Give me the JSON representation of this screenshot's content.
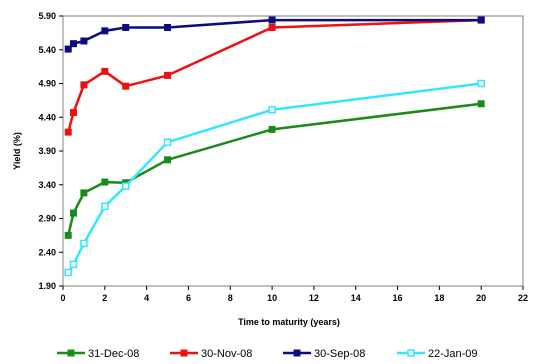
{
  "chart_data": {
    "type": "line",
    "title": "",
    "xlabel": "Time to maturity (years)",
    "ylabel": "Yield (%)",
    "xlim": [
      0,
      22
    ],
    "ylim": [
      1.9,
      5.9
    ],
    "xticks": [
      "0",
      "2",
      "4",
      "6",
      "8",
      "10",
      "12",
      "14",
      "16",
      "18",
      "20",
      "22"
    ],
    "yticks": [
      "1.90",
      "2.40",
      "2.90",
      "3.40",
      "3.90",
      "4.40",
      "4.90",
      "5.40",
      "5.90"
    ],
    "grid": false,
    "legend_position": "bottom",
    "series": [
      {
        "name": "31-Dec-08",
        "color": "#1a8a1a",
        "marker": "square",
        "x": [
          0.25,
          0.5,
          1,
          2,
          3,
          5,
          10,
          20
        ],
        "y": [
          2.65,
          2.98,
          3.28,
          3.44,
          3.43,
          3.77,
          4.22,
          4.6
        ]
      },
      {
        "name": "30-Nov-08",
        "color": "#ee1111",
        "marker": "square",
        "x": [
          0.25,
          0.5,
          1,
          2,
          3,
          5,
          10,
          20
        ],
        "y": [
          4.18,
          4.47,
          4.88,
          5.08,
          4.86,
          5.02,
          5.73,
          5.84
        ]
      },
      {
        "name": "30-Sep-08",
        "color": "#0c0c80",
        "marker": "square",
        "x": [
          0.25,
          0.5,
          1,
          2,
          3,
          5,
          10,
          20
        ],
        "y": [
          5.41,
          5.49,
          5.53,
          5.68,
          5.73,
          5.73,
          5.84,
          5.84
        ]
      },
      {
        "name": "22-Jan-09",
        "color": "#33e6ff",
        "marker": "square-open",
        "x": [
          0.25,
          0.5,
          1,
          2,
          3,
          5,
          10,
          20
        ],
        "y": [
          2.1,
          2.22,
          2.53,
          3.08,
          3.38,
          4.03,
          4.51,
          4.9
        ]
      }
    ]
  }
}
